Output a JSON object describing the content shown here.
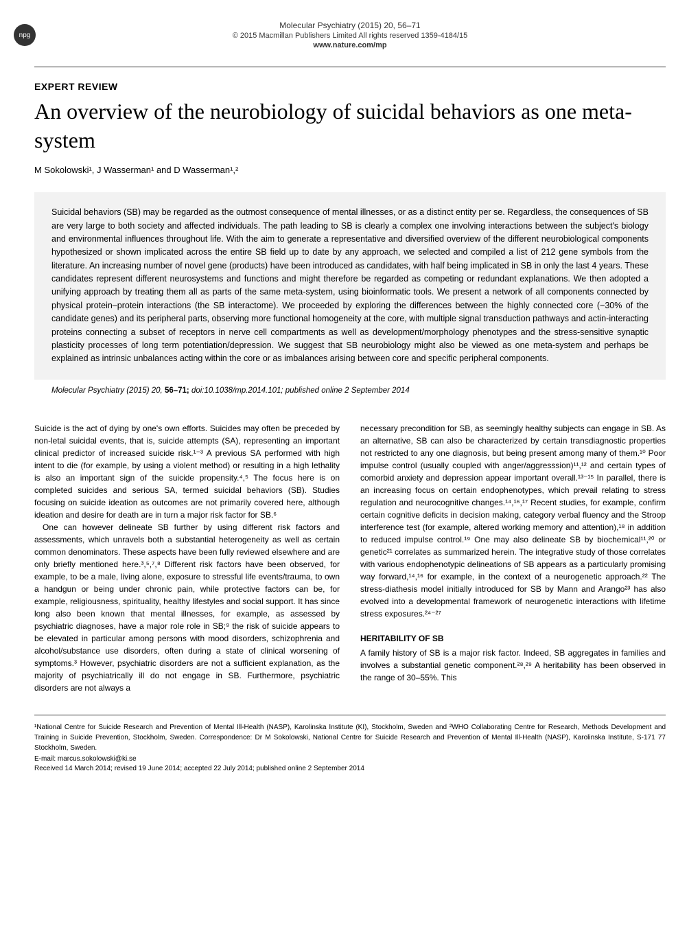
{
  "header": {
    "npg_badge": "npg",
    "journal_citation": "Molecular Psychiatry (2015) 20, 56–71",
    "copyright": "© 2015 Macmillan Publishers Limited   All rights reserved 1359-4184/15",
    "website": "www.nature.com/mp"
  },
  "article": {
    "type": "EXPERT REVIEW",
    "title": "An overview of the neurobiology of suicidal behaviors as one meta-system",
    "authors": "M Sokolowski¹, J Wasserman¹ and D Wasserman¹,²"
  },
  "abstract": {
    "text": "Suicidal behaviors (SB) may be regarded as the outmost consequence of mental illnesses, or as a distinct entity per se. Regardless, the consequences of SB are very large to both society and affected individuals. The path leading to SB is clearly a complex one involving interactions between the subject's biology and environmental influences throughout life. With the aim to generate a representative and diversified overview of the different neurobiological components hypothesized or shown implicated across the entire SB field up to date by any approach, we selected and compiled a list of 212 gene symbols from the literature. An increasing number of novel gene (products) have been introduced as candidates, with half being implicated in SB in only the last 4 years. These candidates represent different neurosystems and functions and might therefore be regarded as competing or redundant explanations. We then adopted a unifying approach by treating them all as parts of the same meta-system, using bioinformatic tools. We present a network of all components connected by physical protein–protein interactions (the SB interactome). We proceeded by exploring the differences between the highly connected core (~30% of the candidate genes) and its peripheral parts, observing more functional homogeneity at the core, with multiple signal transduction pathways and actin-interacting proteins connecting a subset of receptors in nerve cell compartments as well as development/morphology phenotypes and the stress-sensitive synaptic plasticity processes of long term potentiation/depression. We suggest that SB neurobiology might also be viewed as one meta-system and perhaps be explained as intrinsic unbalances acting within the core or as imbalances arising between core and specific peripheral components."
  },
  "citation": {
    "journal": "Molecular Psychiatry",
    "year_vol": "(2015) 20,",
    "pages": "56–71;",
    "doi": "doi:10.1038/mp.2014.101; published online 2 September 2014"
  },
  "body": {
    "p1": "Suicide is the act of dying by one's own efforts. Suicides may often be preceded by non-letal suicidal events, that is, suicide attempts (SA), representing an important clinical predictor of increased suicide risk.¹⁻³ A previous SA performed with high intent to die (for example, by using a violent method) or resulting in a high lethality is also an important sign of the suicide propensity.⁴,⁵ The focus here is on completed suicides and serious SA, termed suicidal behaviors (SB). Studies focusing on suicide ideation as outcomes are not primarily covered here, although ideation and desire for death are in turn a major risk factor for SB.⁶",
    "p2": "One can however delineate SB further by using different risk factors and assessments, which unravels both a substantial heterogeneity as well as certain common denominators. These aspects have been fully reviewed elsewhere and are only briefly mentioned here.³,⁵,⁷,⁸ Different risk factors have been observed, for example, to be a male, living alone, exposure to stressful life events/trauma, to own a handgun or being under chronic pain, while protective factors can be, for example, religiousness, spirituality, healthy lifestyles and social support. It has since long also been known that mental illnesses, for example, as assessed by psychiatric diagnoses, have a major role role in SB;⁹ the risk of suicide appears to be elevated in particular among persons with mood disorders, schizophrenia and alcohol/substance use disorders, often during a state of clinical worsening of symptoms.³ However, psychiatric disorders are not a sufficient explanation, as the majority of psychiatrically ill do not engage in SB. Furthermore, psychiatric disorders are not always a",
    "p3": "necessary precondition for SB, as seemingly healthy subjects can engage in SB. As an alternative, SB can also be characterized by certain transdiagnostic properties not restricted to any one diagnosis, but being present among many of them.¹⁰ Poor impulse control (usually coupled with anger/aggresssion)¹¹,¹² and certain types of comorbid anxiety and depression appear important overall.¹³⁻¹⁵ In parallel, there is an increasing focus on certain endophenotypes, which prevail relating to stress regulation and neurocognitive changes.¹⁴,¹⁶,¹⁷ Recent studies, for example, confirm certain cognitive deficits in decision making, category verbal fluency and the Stroop interference test (for example, altered working memory and attention),¹⁸ in addition to reduced impulse control.¹⁹ One may also delineate SB by biochemical¹¹,²⁰ or genetic²¹ correlates as summarized herein. The integrative study of those correlates with various endophenotypic delineations of SB appears as a particularly promising way forward,¹⁴,¹⁶ for example, in the context of a neurogenetic approach.²² The stress-diathesis model initially introduced for SB by Mann and Arango²³ has also evolved into a developmental framework of neurogenetic interactions with lifetime stress exposures.²⁴⁻²⁷",
    "heading1": "HERITABILITY OF SB",
    "p4": "A family history of SB is a major risk factor. Indeed, SB aggregates in families and involves a substantial genetic component.²⁸,²⁹ A heritability has been observed in the range of 30–55%. This"
  },
  "footer": {
    "affiliations": "¹National Centre for Suicide Research and Prevention of Mental Ill-Health (NASP), Karolinska Institute (KI), Stockholm, Sweden and ²WHO Collaborating Centre for Research, Methods Development and Training in Suicide Prevention, Stockholm, Sweden. Correspondence: Dr M Sokolowski, National Centre for Suicide Research and Prevention of Mental Ill-Health (NASP), Karolinska Institute, S-171 77 Stockholm, Sweden.",
    "email": "E-mail: marcus.sokolowski@ki.se",
    "received": "Received 14 March 2014; revised 19 June 2014; accepted 22 July 2014; published online 2 September 2014"
  }
}
